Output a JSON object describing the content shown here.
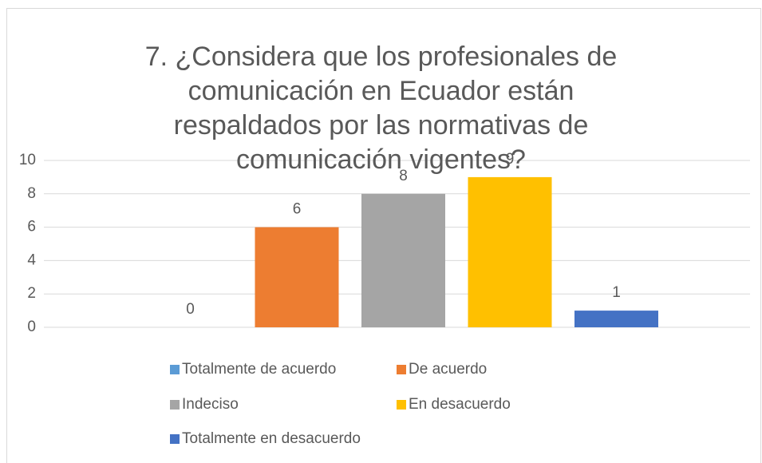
{
  "chart_data": {
    "type": "bar",
    "title": "7. ¿Considera que los profesionales de comunicación en Ecuador están respaldados por las normativas de comunicación vigentes?",
    "categories": [
      null
    ],
    "series": [
      {
        "name": "Totalmente de acuerdo",
        "color": "#5b9bd5",
        "values": [
          0
        ]
      },
      {
        "name": "De acuerdo",
        "color": "#ed7d31",
        "values": [
          6
        ]
      },
      {
        "name": "Indeciso",
        "color": "#a5a5a5",
        "values": [
          8
        ]
      },
      {
        "name": "En desacuerdo",
        "color": "#ffc000",
        "values": [
          9
        ]
      },
      {
        "name": "Totalmente en desacuerdo",
        "color": "#4472c4",
        "values": [
          1
        ]
      }
    ],
    "ylim": [
      0,
      10
    ],
    "yticks": [
      0,
      2,
      4,
      6,
      8,
      10
    ],
    "grid": true,
    "legend": "bottom",
    "data_labels": true
  }
}
